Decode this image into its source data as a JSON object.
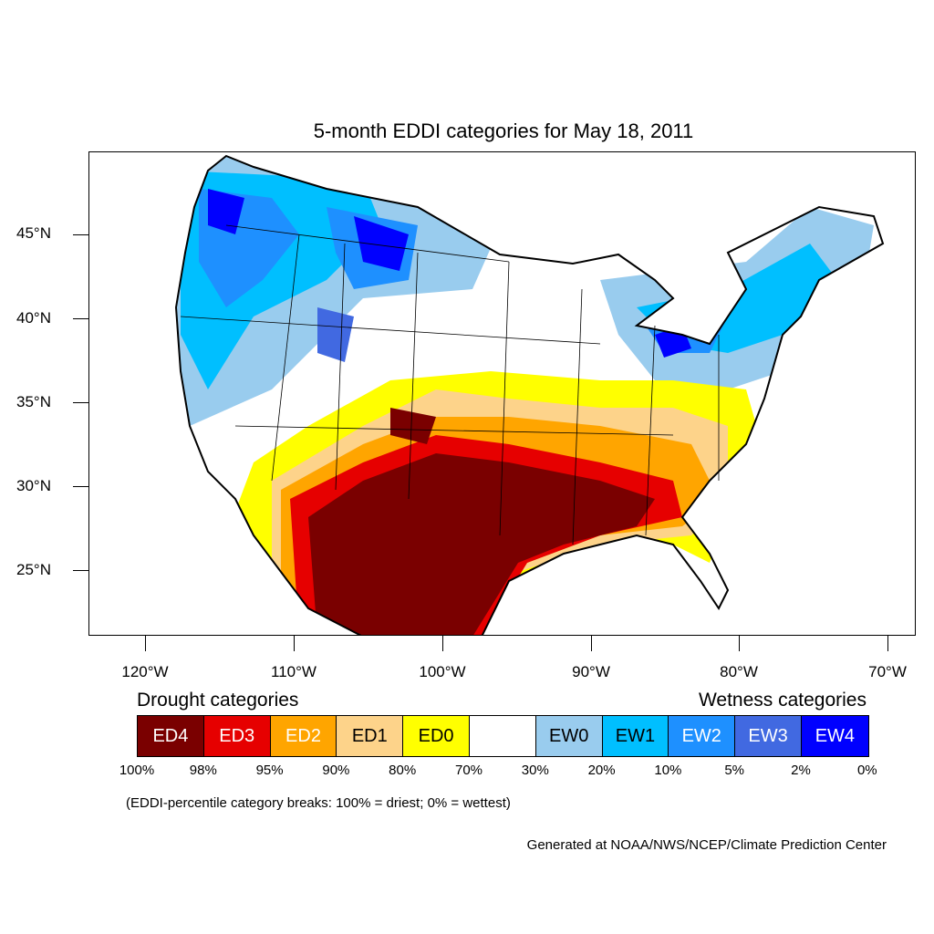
{
  "title": "5-month EDDI categories for May 18, 2011",
  "axes": {
    "lat_labels": [
      "45°N",
      "40°N",
      "35°N",
      "30°N",
      "25°N"
    ],
    "lon_labels": [
      "120°W",
      "110°W",
      "100°W",
      "90°W",
      "80°W",
      "70°W"
    ]
  },
  "legend": {
    "drought_heading": "Drought categories",
    "wetness_heading": "Wetness categories",
    "categories": [
      {
        "label": "ED4",
        "color": "#7a0000",
        "text_color": "#ffffff"
      },
      {
        "label": "ED3",
        "color": "#e60000",
        "text_color": "#ffffff"
      },
      {
        "label": "ED2",
        "color": "#ffa500",
        "text_color": "#ffffff"
      },
      {
        "label": "ED1",
        "color": "#fdd38a",
        "text_color": "#000000"
      },
      {
        "label": "ED0",
        "color": "#ffff00",
        "text_color": "#000000"
      },
      {
        "label": "",
        "color": "#ffffff",
        "text_color": "#000000"
      },
      {
        "label": "EW0",
        "color": "#99ccee",
        "text_color": "#000000"
      },
      {
        "label": "EW1",
        "color": "#00bfff",
        "text_color": "#000000"
      },
      {
        "label": "EW2",
        "color": "#1e90ff",
        "text_color": "#ffffff"
      },
      {
        "label": "EW3",
        "color": "#4169e1",
        "text_color": "#ffffff"
      },
      {
        "label": "EW4",
        "color": "#0000ff",
        "text_color": "#ffffff"
      }
    ],
    "breaks": [
      "100%",
      "98%",
      "95%",
      "90%",
      "80%",
      "70%",
      "30%",
      "20%",
      "10%",
      "5%",
      "2%",
      "0%"
    ]
  },
  "note": "(EDDI-percentile category breaks: 100% = driest; 0% = wettest)",
  "credit": "Generated at NOAA/NWS/NCEP/Climate Prediction Center"
}
